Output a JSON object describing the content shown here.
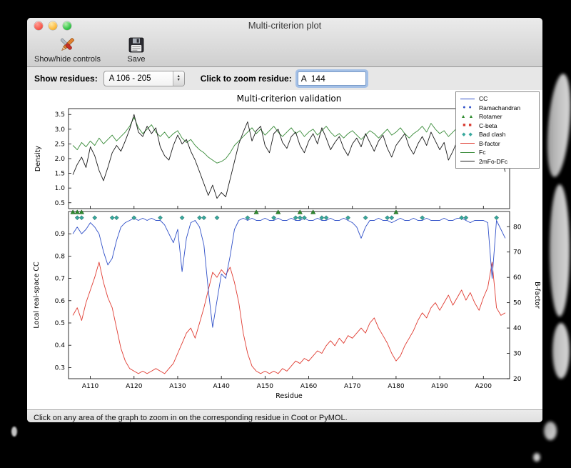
{
  "window": {
    "title": "Multi-criterion plot"
  },
  "toolbar": {
    "show_hide_label": "Show/hide controls",
    "save_label": "Save"
  },
  "controls": {
    "show_residues_label": "Show residues:",
    "residue_range_value": "A 106 - 205",
    "zoom_residue_label": "Click to zoom residue:",
    "zoom_residue_value": "A  144"
  },
  "status_bar": {
    "text": "Click on any area of the graph to zoom in on the corresponding residue in Coot or PyMOL."
  },
  "chart_data": {
    "type": "line",
    "title": "Multi-criterion validation",
    "xlabel": "Residue",
    "x_start": 106,
    "x_end": 205,
    "x_ticks": [
      "A110",
      "A120",
      "A130",
      "A140",
      "A150",
      "A160",
      "A170",
      "A180",
      "A190",
      "A200"
    ],
    "x_tick_values": [
      110,
      120,
      130,
      140,
      150,
      160,
      170,
      180,
      190,
      200
    ],
    "legend_position": "top-right",
    "top_plot": {
      "ylabel": "Density",
      "ylim": [
        0.3,
        3.7
      ],
      "yticks": [
        0.5,
        1.0,
        1.5,
        2.0,
        2.5,
        3.0,
        3.5
      ],
      "series": [
        {
          "name": "Fc",
          "color": "#3a8c3a",
          "values": [
            2.45,
            2.3,
            2.55,
            2.4,
            2.6,
            2.45,
            2.7,
            2.5,
            2.65,
            2.8,
            2.6,
            2.75,
            2.9,
            3.1,
            3.4,
            3.05,
            2.85,
            3.0,
            3.15,
            2.9,
            2.75,
            2.9,
            2.7,
            2.85,
            2.95,
            2.7,
            2.55,
            2.65,
            2.45,
            2.3,
            2.2,
            2.05,
            1.95,
            1.85,
            1.9,
            2.0,
            2.2,
            2.45,
            2.6,
            2.75,
            2.9,
            3.05,
            2.85,
            3.0,
            2.8,
            2.95,
            3.1,
            2.9,
            2.75,
            2.9,
            3.05,
            2.85,
            2.95,
            2.75,
            2.9,
            3.0,
            2.8,
            2.95,
            3.1,
            2.9,
            2.75,
            2.85,
            2.7,
            2.85,
            2.95,
            2.8,
            2.65,
            2.8,
            2.95,
            2.85,
            2.7,
            2.85,
            3.0,
            2.8,
            2.9,
            3.05,
            2.85,
            2.7,
            2.85,
            2.95,
            3.1,
            2.9,
            3.2,
            3.0,
            2.85,
            2.95,
            2.75,
            2.9,
            3.05,
            2.85,
            2.7,
            2.85,
            2.95,
            2.8,
            2.9,
            2.75,
            2.6,
            2.8,
            2.55,
            2.65
          ]
        },
        {
          "name": "2mFo-DFc",
          "color": "#1a1a1a",
          "values": [
            1.45,
            1.8,
            2.05,
            1.7,
            2.4,
            2.1,
            1.6,
            1.25,
            1.7,
            2.2,
            2.45,
            2.25,
            2.6,
            3.0,
            3.5,
            2.9,
            2.75,
            3.1,
            2.85,
            3.05,
            2.4,
            2.1,
            1.95,
            2.45,
            2.8,
            2.5,
            2.65,
            2.25,
            1.95,
            1.55,
            1.15,
            0.75,
            1.1,
            0.65,
            0.85,
            0.7,
            1.3,
            1.9,
            2.5,
            2.9,
            3.25,
            2.6,
            2.95,
            3.1,
            2.45,
            2.2,
            2.85,
            3.0,
            2.55,
            2.35,
            2.75,
            2.9,
            2.45,
            2.2,
            2.6,
            2.85,
            2.5,
            3.05,
            2.7,
            2.3,
            2.55,
            2.75,
            2.35,
            2.1,
            2.5,
            2.7,
            2.4,
            2.85,
            2.55,
            2.25,
            2.6,
            2.8,
            2.35,
            2.05,
            2.45,
            2.65,
            2.85,
            2.4,
            2.15,
            2.5,
            2.75,
            2.45,
            2.9,
            2.6,
            2.3,
            2.55,
            1.95,
            2.25,
            2.6,
            2.35,
            2.05,
            2.4,
            2.15,
            2.35,
            1.85,
            2.1,
            2.35,
            1.75,
            2.05,
            1.55
          ]
        }
      ]
    },
    "bottom_plot": {
      "left_ylabel": "Local real-space CC",
      "left_color": "#3050c8",
      "left_ylim": [
        0.25,
        1.0
      ],
      "left_yticks": [
        0.3,
        0.4,
        0.5,
        0.6,
        0.7,
        0.8,
        0.9
      ],
      "right_ylabel": "B-factor",
      "right_color": "#e03c32",
      "right_ylim": [
        20,
        86
      ],
      "right_yticks": [
        20,
        30,
        40,
        50,
        60,
        70,
        80
      ],
      "cc_values": [
        0.9,
        0.93,
        0.9,
        0.92,
        0.95,
        0.93,
        0.9,
        0.82,
        0.76,
        0.79,
        0.87,
        0.93,
        0.95,
        0.96,
        0.97,
        0.96,
        0.97,
        0.96,
        0.97,
        0.96,
        0.96,
        0.94,
        0.9,
        0.86,
        0.92,
        0.73,
        0.88,
        0.95,
        0.96,
        0.93,
        0.85,
        0.65,
        0.48,
        0.6,
        0.72,
        0.7,
        0.8,
        0.92,
        0.96,
        0.97,
        0.96,
        0.97,
        0.96,
        0.96,
        0.97,
        0.96,
        0.96,
        0.97,
        0.96,
        0.96,
        0.97,
        0.96,
        0.96,
        0.97,
        0.96,
        0.96,
        0.97,
        0.96,
        0.96,
        0.97,
        0.96,
        0.96,
        0.97,
        0.96,
        0.95,
        0.93,
        0.88,
        0.93,
        0.96,
        0.96,
        0.97,
        0.96,
        0.96,
        0.95,
        0.96,
        0.97,
        0.96,
        0.96,
        0.97,
        0.96,
        0.96,
        0.97,
        0.96,
        0.96,
        0.96,
        0.97,
        0.96,
        0.96,
        0.97,
        0.97,
        0.96,
        0.95,
        0.96,
        0.96,
        0.96,
        0.95,
        0.7,
        0.96,
        0.92,
        0.88
      ],
      "bfactor_values": [
        45,
        48,
        43,
        50,
        55,
        60,
        66,
        58,
        52,
        48,
        40,
        32,
        27,
        24,
        23,
        22,
        23,
        22,
        23,
        24,
        23,
        22,
        24,
        26,
        30,
        34,
        38,
        40,
        36,
        42,
        48,
        55,
        62,
        60,
        63,
        61,
        64,
        58,
        50,
        38,
        30,
        25,
        23,
        22,
        23,
        22,
        23,
        22,
        24,
        23,
        25,
        27,
        26,
        28,
        27,
        29,
        31,
        30,
        33,
        35,
        33,
        36,
        34,
        37,
        36,
        38,
        40,
        38,
        42,
        44,
        40,
        37,
        34,
        30,
        27,
        29,
        33,
        36,
        39,
        43,
        46,
        44,
        48,
        50,
        47,
        50,
        53,
        49,
        52,
        55,
        51,
        54,
        50,
        47,
        52,
        56,
        66,
        48,
        45,
        46
      ],
      "markers": {
        "bad_clash": {
          "shape": "diamond",
          "color": "#38a89d",
          "y": 0.972,
          "residues": [
            107,
            108,
            111,
            115,
            116,
            120,
            126,
            131,
            135,
            136,
            139,
            146,
            152,
            157,
            158,
            159,
            163,
            164,
            169,
            173,
            178,
            179,
            186,
            195,
            196,
            203
          ]
        },
        "rotamer": {
          "shape": "triangle",
          "color": "#2e8b2e",
          "y": 0.997,
          "residues": [
            106,
            107,
            108,
            148,
            153,
            158,
            161,
            180
          ]
        },
        "ramachandran": {
          "shape": "circle",
          "color": "#3050c8",
          "y": 0.997,
          "residues": []
        },
        "c_beta": {
          "shape": "square",
          "color": "#d83c32",
          "y": 0.972,
          "residues": []
        }
      }
    },
    "legend": {
      "items": [
        {
          "label": "CC",
          "type": "line",
          "color": "#3050c8"
        },
        {
          "label": "Ramachandran",
          "type": "circles",
          "color": "#3050c8"
        },
        {
          "label": "Rotamer",
          "type": "triangles",
          "color": "#2e8b2e"
        },
        {
          "label": "C-beta",
          "type": "squares",
          "color": "#d83c32"
        },
        {
          "label": "Bad clash",
          "type": "diamonds",
          "color": "#38a89d"
        },
        {
          "label": "B-factor",
          "type": "line",
          "color": "#e03c32"
        },
        {
          "label": "Fc",
          "type": "line",
          "color": "#3a8c3a"
        },
        {
          "label": "2mFo-DFc",
          "type": "line",
          "color": "#1a1a1a"
        }
      ]
    }
  }
}
